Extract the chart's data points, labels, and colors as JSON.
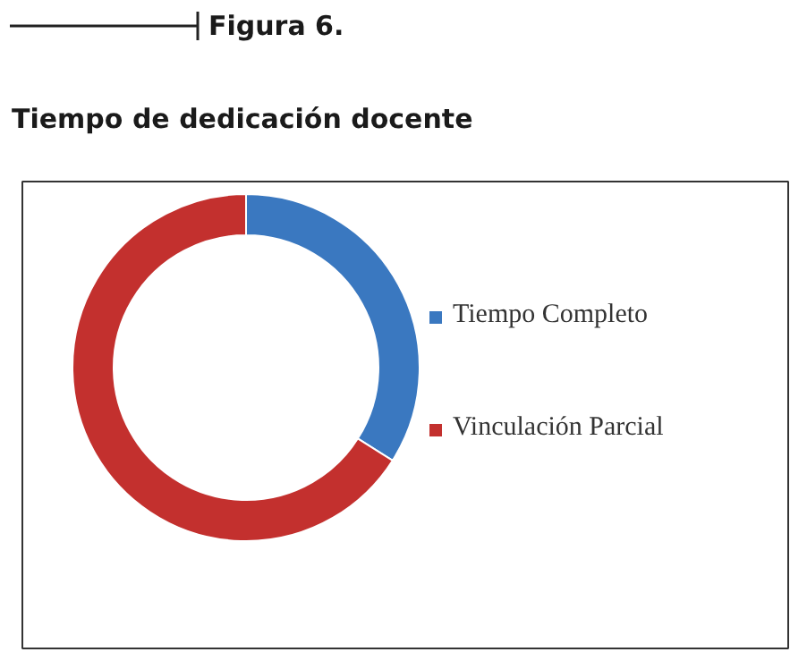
{
  "chart_data": {
    "type": "donut",
    "title": "Figura 6.",
    "subtitle": "Tiempo de dedicación docente",
    "categories": [
      "Tiempo Completo",
      "Vinculación Parcial"
    ],
    "values": [
      34,
      66
    ],
    "colors": [
      "#3a78c0",
      "#c3302e"
    ],
    "legend": "right"
  }
}
